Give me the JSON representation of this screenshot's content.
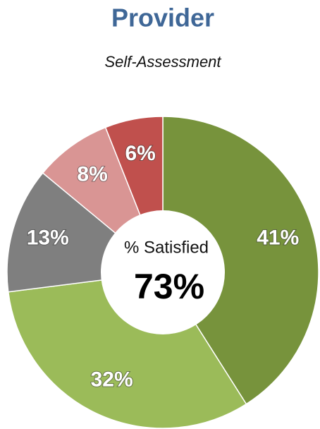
{
  "chart_data": {
    "type": "donut",
    "title": "Provider",
    "subtitle": "Self-Assessment",
    "values": [
      41,
      32,
      13,
      8,
      6
    ],
    "value_labels": [
      "41%",
      "32%",
      "13%",
      "8%",
      "6%"
    ],
    "colors": [
      "#77933c",
      "#9bbb59",
      "#7f7f7f",
      "#d99594",
      "#c0504d"
    ],
    "center_text": "% Satisfied",
    "center_value": "73%"
  }
}
